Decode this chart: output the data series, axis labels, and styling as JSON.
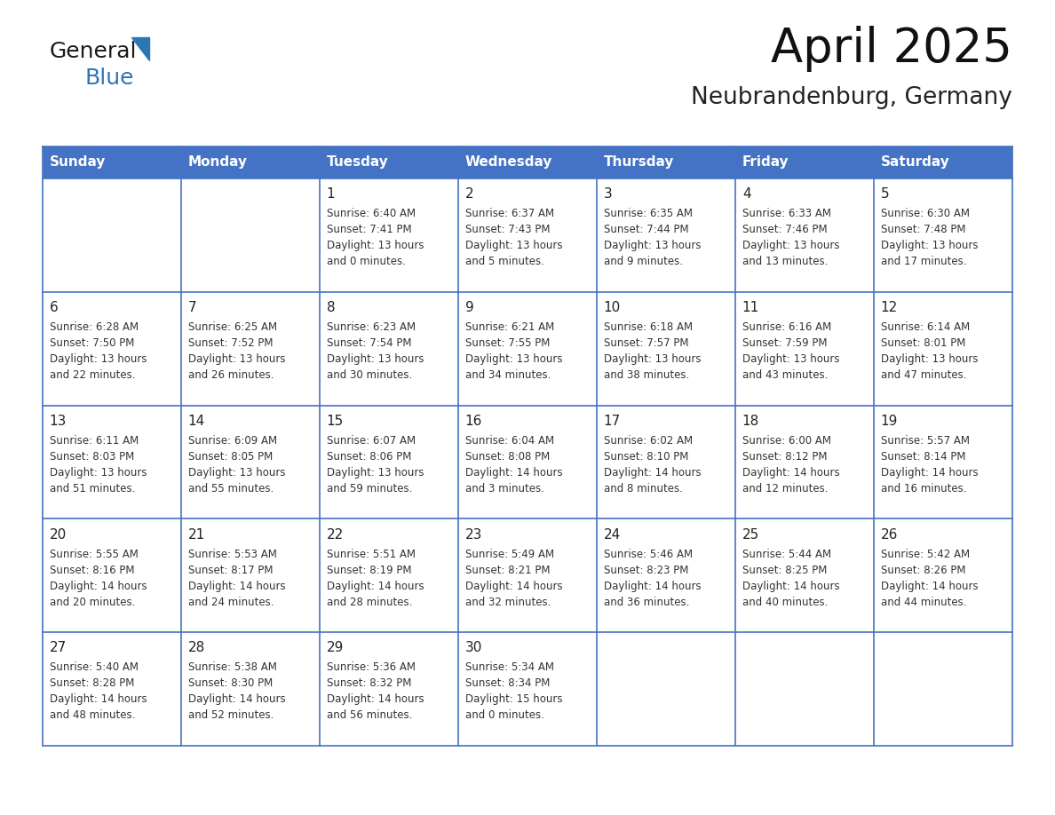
{
  "title": "April 2025",
  "subtitle": "Neubrandenburg, Germany",
  "header_color": "#4472C4",
  "header_text_color": "#FFFFFF",
  "cell_bg_color": "#FFFFFF",
  "border_color": "#4472C4",
  "text_color": "#333333",
  "days_of_week": [
    "Sunday",
    "Monday",
    "Tuesday",
    "Wednesday",
    "Thursday",
    "Friday",
    "Saturday"
  ],
  "weeks": [
    [
      {
        "day": "",
        "info": ""
      },
      {
        "day": "",
        "info": ""
      },
      {
        "day": "1",
        "info": "Sunrise: 6:40 AM\nSunset: 7:41 PM\nDaylight: 13 hours\nand 0 minutes."
      },
      {
        "day": "2",
        "info": "Sunrise: 6:37 AM\nSunset: 7:43 PM\nDaylight: 13 hours\nand 5 minutes."
      },
      {
        "day": "3",
        "info": "Sunrise: 6:35 AM\nSunset: 7:44 PM\nDaylight: 13 hours\nand 9 minutes."
      },
      {
        "day": "4",
        "info": "Sunrise: 6:33 AM\nSunset: 7:46 PM\nDaylight: 13 hours\nand 13 minutes."
      },
      {
        "day": "5",
        "info": "Sunrise: 6:30 AM\nSunset: 7:48 PM\nDaylight: 13 hours\nand 17 minutes."
      }
    ],
    [
      {
        "day": "6",
        "info": "Sunrise: 6:28 AM\nSunset: 7:50 PM\nDaylight: 13 hours\nand 22 minutes."
      },
      {
        "day": "7",
        "info": "Sunrise: 6:25 AM\nSunset: 7:52 PM\nDaylight: 13 hours\nand 26 minutes."
      },
      {
        "day": "8",
        "info": "Sunrise: 6:23 AM\nSunset: 7:54 PM\nDaylight: 13 hours\nand 30 minutes."
      },
      {
        "day": "9",
        "info": "Sunrise: 6:21 AM\nSunset: 7:55 PM\nDaylight: 13 hours\nand 34 minutes."
      },
      {
        "day": "10",
        "info": "Sunrise: 6:18 AM\nSunset: 7:57 PM\nDaylight: 13 hours\nand 38 minutes."
      },
      {
        "day": "11",
        "info": "Sunrise: 6:16 AM\nSunset: 7:59 PM\nDaylight: 13 hours\nand 43 minutes."
      },
      {
        "day": "12",
        "info": "Sunrise: 6:14 AM\nSunset: 8:01 PM\nDaylight: 13 hours\nand 47 minutes."
      }
    ],
    [
      {
        "day": "13",
        "info": "Sunrise: 6:11 AM\nSunset: 8:03 PM\nDaylight: 13 hours\nand 51 minutes."
      },
      {
        "day": "14",
        "info": "Sunrise: 6:09 AM\nSunset: 8:05 PM\nDaylight: 13 hours\nand 55 minutes."
      },
      {
        "day": "15",
        "info": "Sunrise: 6:07 AM\nSunset: 8:06 PM\nDaylight: 13 hours\nand 59 minutes."
      },
      {
        "day": "16",
        "info": "Sunrise: 6:04 AM\nSunset: 8:08 PM\nDaylight: 14 hours\nand 3 minutes."
      },
      {
        "day": "17",
        "info": "Sunrise: 6:02 AM\nSunset: 8:10 PM\nDaylight: 14 hours\nand 8 minutes."
      },
      {
        "day": "18",
        "info": "Sunrise: 6:00 AM\nSunset: 8:12 PM\nDaylight: 14 hours\nand 12 minutes."
      },
      {
        "day": "19",
        "info": "Sunrise: 5:57 AM\nSunset: 8:14 PM\nDaylight: 14 hours\nand 16 minutes."
      }
    ],
    [
      {
        "day": "20",
        "info": "Sunrise: 5:55 AM\nSunset: 8:16 PM\nDaylight: 14 hours\nand 20 minutes."
      },
      {
        "day": "21",
        "info": "Sunrise: 5:53 AM\nSunset: 8:17 PM\nDaylight: 14 hours\nand 24 minutes."
      },
      {
        "day": "22",
        "info": "Sunrise: 5:51 AM\nSunset: 8:19 PM\nDaylight: 14 hours\nand 28 minutes."
      },
      {
        "day": "23",
        "info": "Sunrise: 5:49 AM\nSunset: 8:21 PM\nDaylight: 14 hours\nand 32 minutes."
      },
      {
        "day": "24",
        "info": "Sunrise: 5:46 AM\nSunset: 8:23 PM\nDaylight: 14 hours\nand 36 minutes."
      },
      {
        "day": "25",
        "info": "Sunrise: 5:44 AM\nSunset: 8:25 PM\nDaylight: 14 hours\nand 40 minutes."
      },
      {
        "day": "26",
        "info": "Sunrise: 5:42 AM\nSunset: 8:26 PM\nDaylight: 14 hours\nand 44 minutes."
      }
    ],
    [
      {
        "day": "27",
        "info": "Sunrise: 5:40 AM\nSunset: 8:28 PM\nDaylight: 14 hours\nand 48 minutes."
      },
      {
        "day": "28",
        "info": "Sunrise: 5:38 AM\nSunset: 8:30 PM\nDaylight: 14 hours\nand 52 minutes."
      },
      {
        "day": "29",
        "info": "Sunrise: 5:36 AM\nSunset: 8:32 PM\nDaylight: 14 hours\nand 56 minutes."
      },
      {
        "day": "30",
        "info": "Sunrise: 5:34 AM\nSunset: 8:34 PM\nDaylight: 15 hours\nand 0 minutes."
      },
      {
        "day": "",
        "info": ""
      },
      {
        "day": "",
        "info": ""
      },
      {
        "day": "",
        "info": ""
      }
    ]
  ],
  "logo_general_color": "#1a1a1a",
  "logo_blue_color": "#2E75B6",
  "logo_triangle_color": "#2E75B6",
  "fig_width": 11.88,
  "fig_height": 9.18,
  "dpi": 100
}
